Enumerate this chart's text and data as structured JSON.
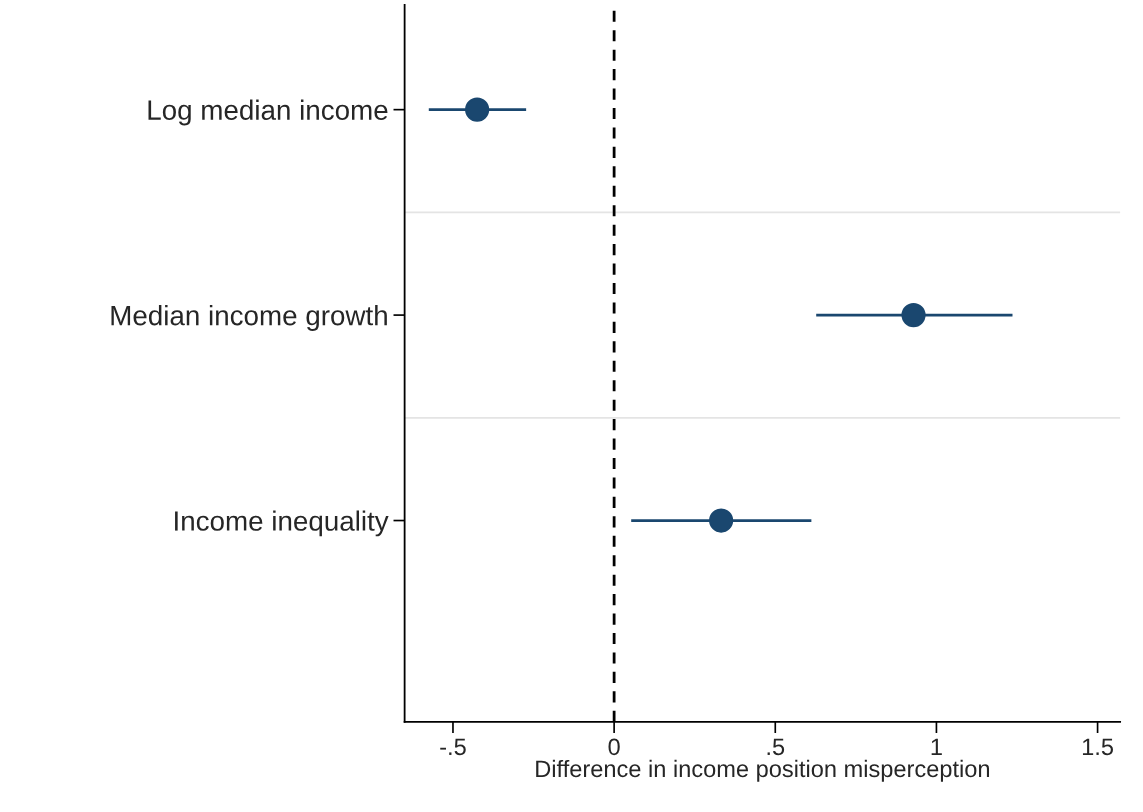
{
  "chart_data": {
    "type": "scatter",
    "orientation": "horizontal",
    "xlabel": "Difference in income position misperception",
    "categories": [
      "Log median income",
      "Median income growth",
      "Income inequality"
    ],
    "values": [
      -0.425,
      0.929,
      0.332
    ],
    "errors": [
      [
        -0.575,
        -0.273
      ],
      [
        0.627,
        1.236
      ],
      [
        0.053,
        0.612
      ]
    ],
    "color": "#1a476f",
    "marker": "circle",
    "xlim": [
      -0.65,
      1.57
    ],
    "xticks": [
      {
        "value": -0.5,
        "label": "-.5"
      },
      0,
      {
        "value": 0.5,
        "label": ".5"
      },
      1,
      1.5
    ],
    "ref_lines": [
      {
        "axis": "x",
        "value": 0,
        "color": "#000000",
        "line_style": "dashed"
      }
    ],
    "grid": "y"
  }
}
